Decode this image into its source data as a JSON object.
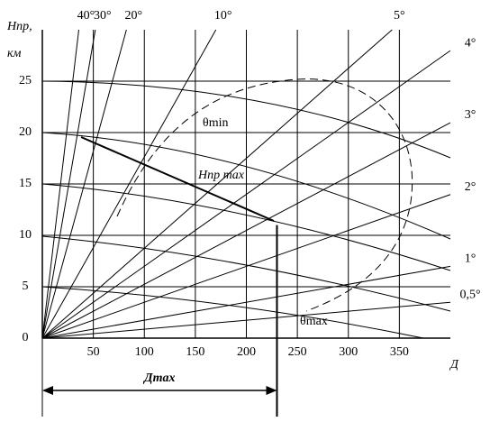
{
  "chart_data": {
    "type": "nomogram",
    "ylabel": "Hпр,",
    "yunit": "км",
    "xlabel": "Д",
    "xlim": [
      0,
      400
    ],
    "ylim": [
      0,
      30
    ],
    "xticks": [
      50,
      100,
      150,
      200,
      250,
      300,
      350
    ],
    "yticks": [
      0,
      5,
      10,
      15,
      20,
      25
    ],
    "grid": true,
    "rays": [
      {
        "angle": 40,
        "label": "40°"
      },
      {
        "angle": 30,
        "label": "30°"
      },
      {
        "angle": 20,
        "label": "20°"
      },
      {
        "angle": 10,
        "label": "10°"
      },
      {
        "angle": 5,
        "label": "5°"
      },
      {
        "angle": 4,
        "label": "4°"
      },
      {
        "angle": 3,
        "label": "3°"
      },
      {
        "angle": 2,
        "label": "2°"
      },
      {
        "angle": 1,
        "label": "1°"
      },
      {
        "angle": 0.5,
        "label": "0,5°"
      }
    ],
    "theta_min_label": "θmin",
    "theta_max_label": "θmax",
    "h_max_label": "Hпр max",
    "d_max": {
      "value": 230,
      "label": "Дmax"
    }
  }
}
